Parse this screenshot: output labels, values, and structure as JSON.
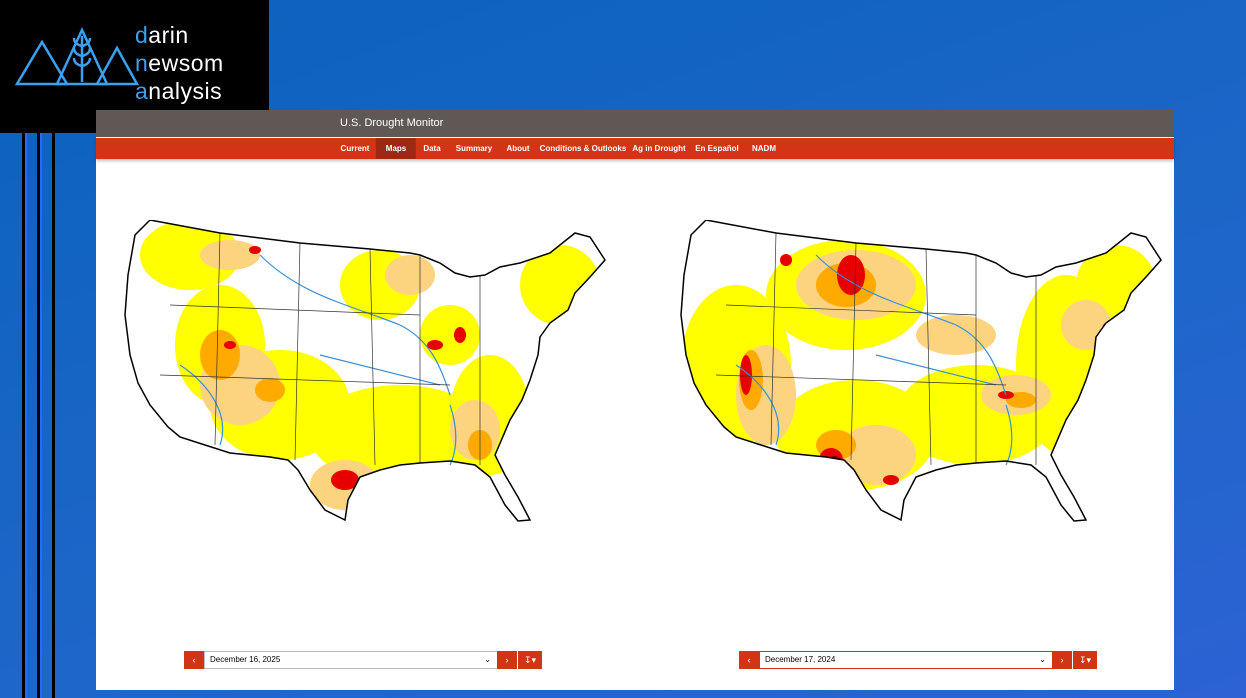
{
  "logo": {
    "line1": "darin",
    "line2": "newsom",
    "line3": "analysis"
  },
  "site": {
    "title": "U.S. Drought Monitor",
    "nav": [
      "Current",
      "Maps",
      "Data",
      "Summary",
      "About",
      "Conditions & Outlooks",
      "Ag in Drought",
      "En Español",
      "NADM"
    ],
    "active_nav": 1
  },
  "maps": [
    {
      "date": "December 16, 2025"
    },
    {
      "date": "December 17, 2024"
    }
  ]
}
